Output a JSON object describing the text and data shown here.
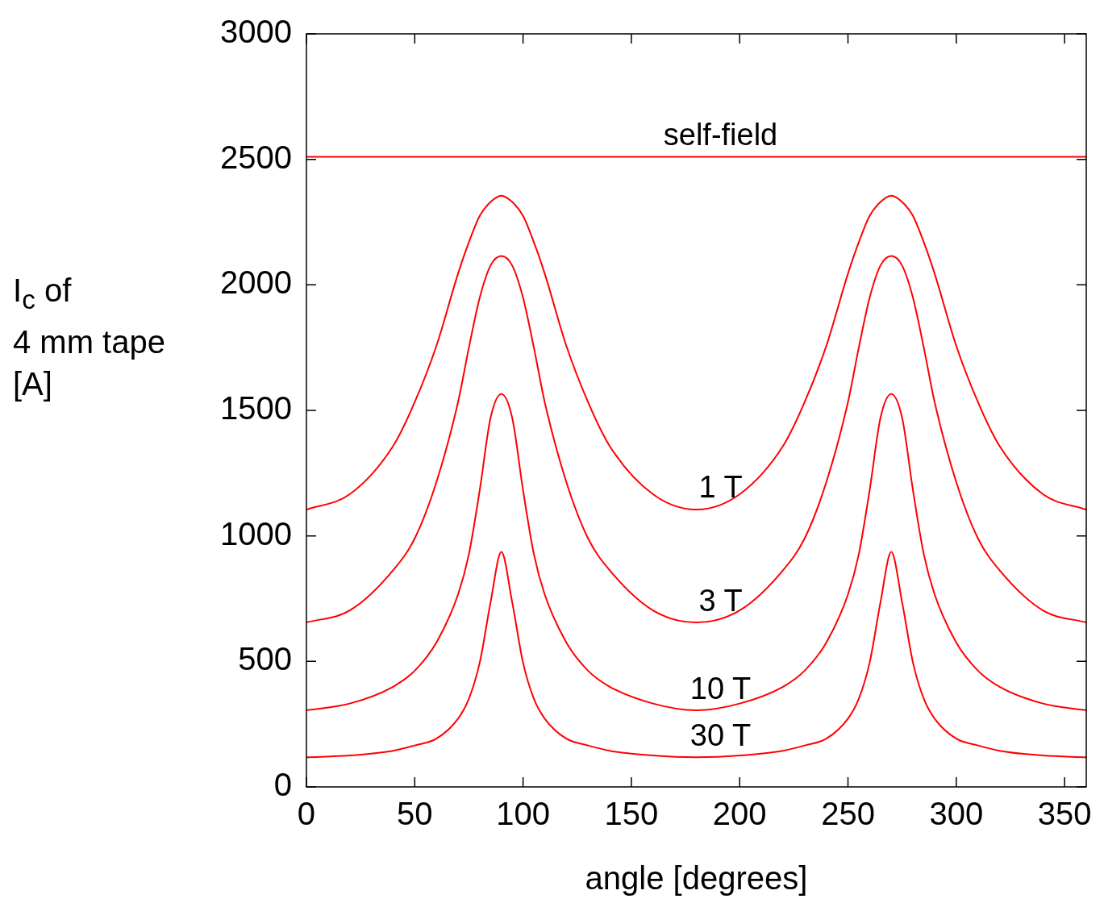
{
  "chart_data": {
    "type": "line",
    "xlabel": "angle [degrees]",
    "ylabel": "I$_{c}$ of\n4 mm tape\n[A]",
    "x": [
      0,
      20,
      40,
      50,
      60,
      70,
      75,
      80,
      85,
      90,
      95,
      100,
      105,
      110,
      120,
      130,
      140,
      160,
      180,
      200,
      220,
      230,
      240,
      250,
      255,
      260,
      265,
      270,
      275,
      280,
      285,
      290,
      300,
      310,
      320,
      340,
      360
    ],
    "series": [
      {
        "name": "self-field",
        "color": "#ff0000",
        "x": [
          0,
          360
        ],
        "values": [
          2510,
          2510
        ]
      },
      {
        "name": "1 T",
        "color": "#ff0000",
        "values": [
          1105,
          1166,
          1358,
          1533,
          1757,
          2045,
          2170,
          2275,
          2330,
          2355,
          2330,
          2275,
          2170,
          2045,
          1757,
          1533,
          1358,
          1166,
          1105,
          1166,
          1358,
          1533,
          1757,
          2045,
          2170,
          2275,
          2330,
          2355,
          2330,
          2275,
          2170,
          2045,
          1757,
          1533,
          1358,
          1166,
          1105
        ]
      },
      {
        "name": "3 T",
        "color": "#ff0000",
        "values": [
          655,
          703,
          863,
          990,
          1214,
          1533,
          1750,
          1949,
          2077,
          2115,
          2077,
          1949,
          1750,
          1533,
          1214,
          990,
          863,
          703,
          655,
          703,
          863,
          990,
          1214,
          1533,
          1750,
          1949,
          2077,
          2115,
          2077,
          1949,
          1750,
          1533,
          1214,
          990,
          863,
          703,
          655
        ]
      },
      {
        "name": "10 T",
        "color": "#ff0000",
        "values": [
          305,
          332,
          399,
          463,
          575,
          767,
          927,
          1182,
          1470,
          1565,
          1470,
          1182,
          927,
          767,
          575,
          463,
          399,
          332,
          305,
          332,
          399,
          463,
          575,
          767,
          927,
          1182,
          1470,
          1565,
          1470,
          1182,
          927,
          767,
          575,
          463,
          399,
          332,
          305
        ]
      },
      {
        "name": "30 T",
        "color": "#ff0000",
        "values": [
          118,
          125,
          144,
          165,
          192,
          272,
          351,
          495,
          735,
          936,
          735,
          495,
          351,
          272,
          192,
          165,
          144,
          125,
          118,
          125,
          144,
          165,
          192,
          272,
          351,
          495,
          735,
          936,
          735,
          495,
          351,
          272,
          192,
          165,
          144,
          125,
          118
        ]
      }
    ],
    "xlim": [
      0,
      360
    ],
    "xticks": [
      0,
      50,
      100,
      150,
      200,
      250,
      300,
      350
    ],
    "ylim": [
      0,
      3000
    ],
    "yticks": [
      0,
      500,
      1000,
      1500,
      2000,
      2500,
      3000
    ],
    "grid": false,
    "legend": false,
    "marker": "none",
    "line_style": "solid"
  }
}
